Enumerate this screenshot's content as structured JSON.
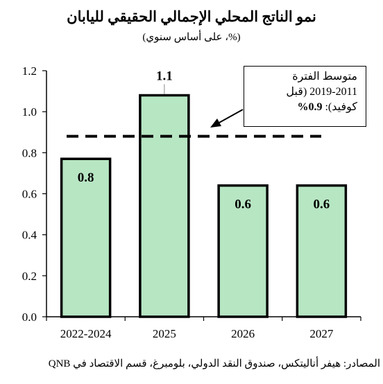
{
  "chart_data": {
    "type": "bar",
    "title": "نمو الناتج المحلي الإجمالي الحقيقي لليابان",
    "subtitle": "(%، على أساس سنوي)",
    "categories": [
      "2022-2024",
      "2025",
      "2026",
      "2027"
    ],
    "values": [
      0.8,
      1.1,
      0.6,
      0.6
    ],
    "bar_heights": [
      0.77,
      1.08,
      0.64,
      0.64
    ],
    "data_labels": [
      "0.8",
      "1.1",
      "0.6",
      "0.6"
    ],
    "ylim": [
      0.0,
      1.2
    ],
    "yticks": [
      "0.0",
      "0.2",
      "0.4",
      "0.6",
      "0.8",
      "1.0",
      "1.2"
    ],
    "reference_line": {
      "value": 0.88,
      "style": "dashed",
      "label_lines": [
        "متوسط الفترة",
        "2019-2011 (قبل",
        "كوفيد): "
      ],
      "label_value": "0.9%"
    },
    "grid": false,
    "colors": {
      "bar_fill": "#b7e6c3",
      "bar_stroke": "#000000"
    }
  },
  "source": "المصادر: هيفر أناليتكس، صندوق النقد الدولي، بلومبرغ، قسم الاقتصاد في QNB"
}
